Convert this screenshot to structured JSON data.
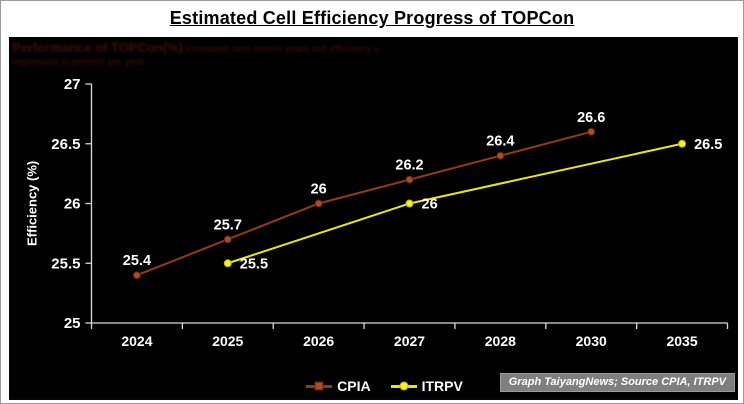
{
  "title": "Estimated Cell Efficiency Progress of TOPCon",
  "ghost_text": {
    "line1_strong": "Performance of TOPCon(%)",
    "line1_rest": " increased over recent years cell efficiency y",
    "line2": "expressed in percent per year"
  },
  "source_note": "Graph TaiyangNews; Source CPIA, ITRPV",
  "colors": {
    "panel_bg": "#010101",
    "axis": "#d9d9d9",
    "tick_text": "#ffffff",
    "cpia_line": "#94391b",
    "cpia_marker": "#a8501e",
    "itrpv_line": "#eae61e",
    "itrpv_marker": "#f5f127",
    "source_bg": "#7f7f7f",
    "title_color": "#000000"
  },
  "chart_data": {
    "type": "line",
    "title": "Estimated Cell Efficiency Progress of TOPCon",
    "xlabel": "",
    "ylabel": "Efficiency (%)",
    "ylim": [
      25,
      27
    ],
    "grid": false,
    "legend_position": "bottom",
    "categories": [
      "2024",
      "2025",
      "2026",
      "2027",
      "2028",
      "2030",
      "2035"
    ],
    "y_ticks": [
      {
        "v": 27,
        "label": "27"
      },
      {
        "v": 26.5,
        "label": "26.5"
      },
      {
        "v": 26,
        "label": "26"
      },
      {
        "v": 25.5,
        "label": "25.5"
      },
      {
        "v": 25,
        "label": "25"
      }
    ],
    "series": [
      {
        "name": "CPIA",
        "color": "#94391b",
        "marker_color": "#a8501e",
        "marker_stroke": "#5f1f10",
        "marker": "circle",
        "label_placement": "above",
        "points": [
          {
            "category": "2024",
            "i": 0,
            "value": 25.4,
            "label": "25.4"
          },
          {
            "category": "2025",
            "i": 1,
            "value": 25.7,
            "label": "25.7"
          },
          {
            "category": "2026",
            "i": 2,
            "value": 26,
            "label": "26"
          },
          {
            "category": "2027",
            "i": 3,
            "value": 26.2,
            "label": "26.2"
          },
          {
            "category": "2028",
            "i": 4,
            "value": 26.4,
            "label": "26.4"
          },
          {
            "category": "2030",
            "i": 5,
            "value": 26.6,
            "label": "26.6"
          }
        ]
      },
      {
        "name": "ITRPV",
        "color": "#eae61e",
        "marker_color": "#f5f127",
        "marker_stroke": "#b8b410",
        "marker": "circle",
        "label_placement": "right",
        "points": [
          {
            "category": "2025",
            "i": 1,
            "value": 25.5,
            "label": "25.5"
          },
          {
            "category": "2027",
            "i": 3,
            "value": 26,
            "label": "26"
          },
          {
            "category": "2035",
            "i": 6,
            "value": 26.5,
            "label": "26.5"
          }
        ]
      }
    ]
  }
}
